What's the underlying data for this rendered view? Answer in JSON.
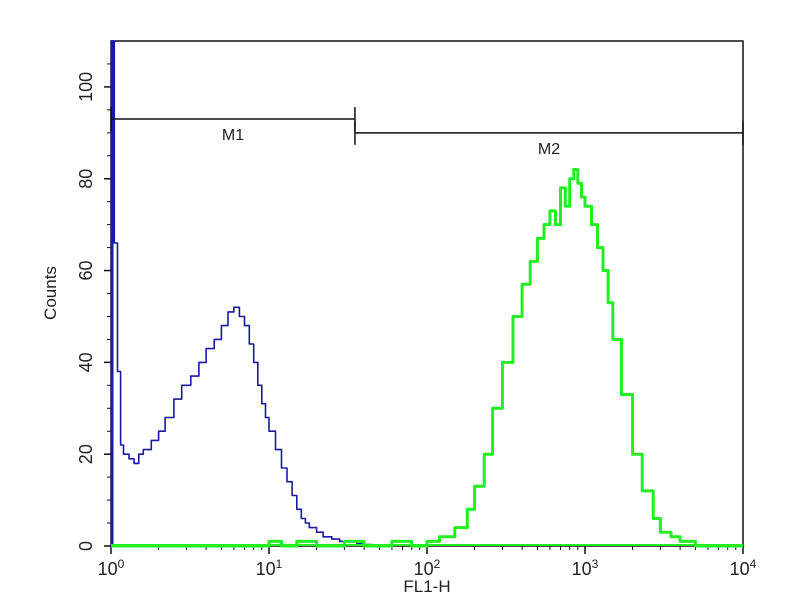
{
  "chart_data": {
    "type": "line",
    "xlabel": "FL1-H",
    "ylabel": "Counts",
    "x_scale": "log",
    "xlim": [
      1,
      10000
    ],
    "ylim": [
      0,
      110
    ],
    "x_ticks": [
      {
        "value": 1,
        "base": "10",
        "exp": "0"
      },
      {
        "value": 10,
        "base": "10",
        "exp": "1"
      },
      {
        "value": 100,
        "base": "10",
        "exp": "2"
      },
      {
        "value": 1000,
        "base": "10",
        "exp": "3"
      },
      {
        "value": 10000,
        "base": "10",
        "exp": "4"
      }
    ],
    "y_ticks": [
      0,
      20,
      40,
      60,
      80,
      100
    ],
    "gates": [
      {
        "name": "M1",
        "x_start": 1,
        "x_end": 35,
        "y": 93
      },
      {
        "name": "M2",
        "x_start": 35,
        "x_end": 10000,
        "y": 90
      }
    ],
    "series": [
      {
        "color": "#1a1aa0",
        "x": [
          1.0,
          1.05,
          1.1,
          1.15,
          1.2,
          1.3,
          1.4,
          1.5,
          1.6,
          1.8,
          2.0,
          2.2,
          2.5,
          2.8,
          3.2,
          3.6,
          4.0,
          4.5,
          5.0,
          5.5,
          6.0,
          6.5,
          7.0,
          7.5,
          8.0,
          8.5,
          9.0,
          9.5,
          10,
          11,
          12,
          13,
          14,
          15,
          16,
          17,
          18,
          20,
          22,
          25,
          28,
          32,
          36,
          40,
          45,
          50
        ],
        "values": [
          110,
          66,
          38,
          22,
          20,
          19,
          18,
          20,
          21,
          23,
          25,
          28,
          32,
          35,
          37,
          40,
          43,
          45,
          48,
          51,
          52,
          50,
          48,
          44,
          40,
          35,
          31,
          28,
          25,
          21,
          17,
          14,
          11,
          8,
          6,
          5,
          4,
          3,
          2,
          1.5,
          1,
          1,
          0.5,
          0.3,
          0.2,
          0
        ]
      },
      {
        "color": "#22ee22",
        "x": [
          1,
          5,
          8,
          10,
          12,
          15,
          20,
          25,
          30,
          40,
          50,
          60,
          80,
          100,
          120,
          150,
          180,
          200,
          230,
          260,
          300,
          350,
          400,
          450,
          500,
          550,
          600,
          650,
          700,
          750,
          800,
          850,
          900,
          950,
          1000,
          1100,
          1200,
          1300,
          1400,
          1500,
          1700,
          2000,
          2300,
          2700,
          3000,
          3500,
          4000,
          5000,
          7000,
          10000
        ],
        "values": [
          0,
          0,
          0,
          1,
          0,
          1,
          0,
          0,
          1,
          0,
          0,
          1,
          0,
          1,
          2,
          4,
          8,
          13,
          20,
          30,
          40,
          50,
          57,
          62,
          67,
          70,
          73,
          70,
          78,
          74,
          80,
          82,
          79,
          76,
          74,
          70,
          65,
          60,
          53,
          45,
          33,
          20,
          12,
          6,
          3,
          2,
          1,
          0,
          0,
          0
        ]
      }
    ]
  }
}
